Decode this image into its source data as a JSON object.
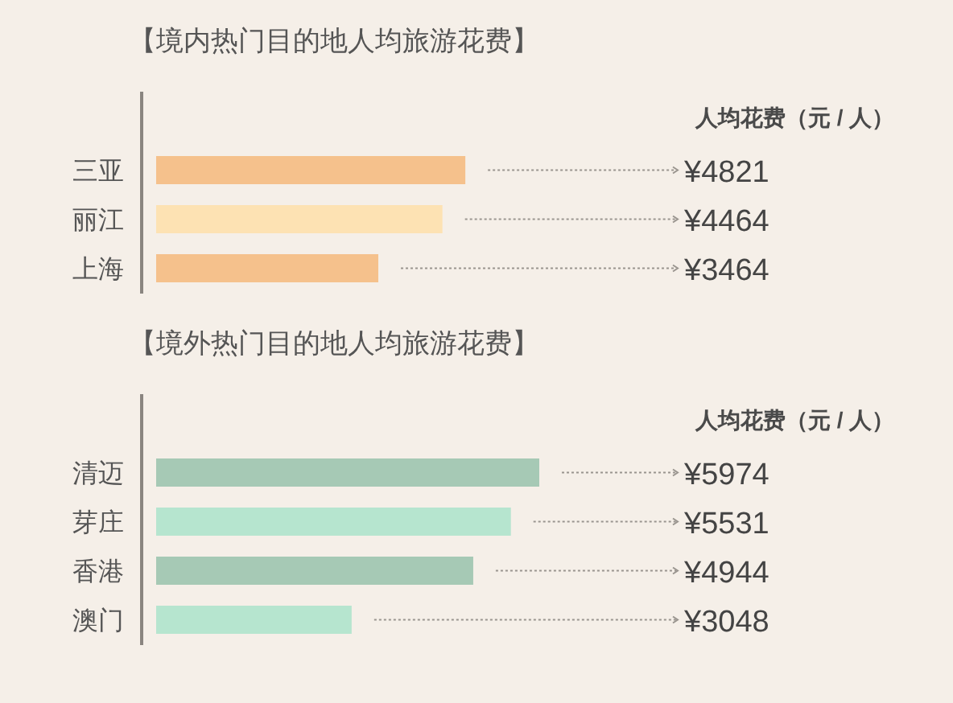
{
  "chart_data": [
    {
      "type": "bar",
      "orientation": "horizontal",
      "title": "【境内热门目的地人均旅游花费】",
      "categories": [
        "三亚",
        "丽江",
        "上海"
      ],
      "values": [
        4821,
        4464,
        3464
      ],
      "colors": [
        "#f5c18c",
        "#fde2b3",
        "#f5c18c"
      ],
      "value_labels": [
        "¥4821",
        "¥4464",
        "¥3464"
      ],
      "annotations": [
        "人均花费（元 / 人）"
      ]
    },
    {
      "type": "bar",
      "orientation": "horizontal",
      "title": "【境外热门目的地人均旅游花费】",
      "categories": [
        "清迈",
        "芽庄",
        "香港",
        "澳门"
      ],
      "values": [
        5974,
        5531,
        4944,
        3048
      ],
      "colors": [
        "#a6c9b5",
        "#b6e5cf",
        "#a6c9b5",
        "#b6e5cf"
      ],
      "value_labels": [
        "¥5974",
        "¥5531",
        "¥4944",
        "¥3048"
      ],
      "annotations": [
        "人均花费（元 / 人）"
      ]
    }
  ]
}
